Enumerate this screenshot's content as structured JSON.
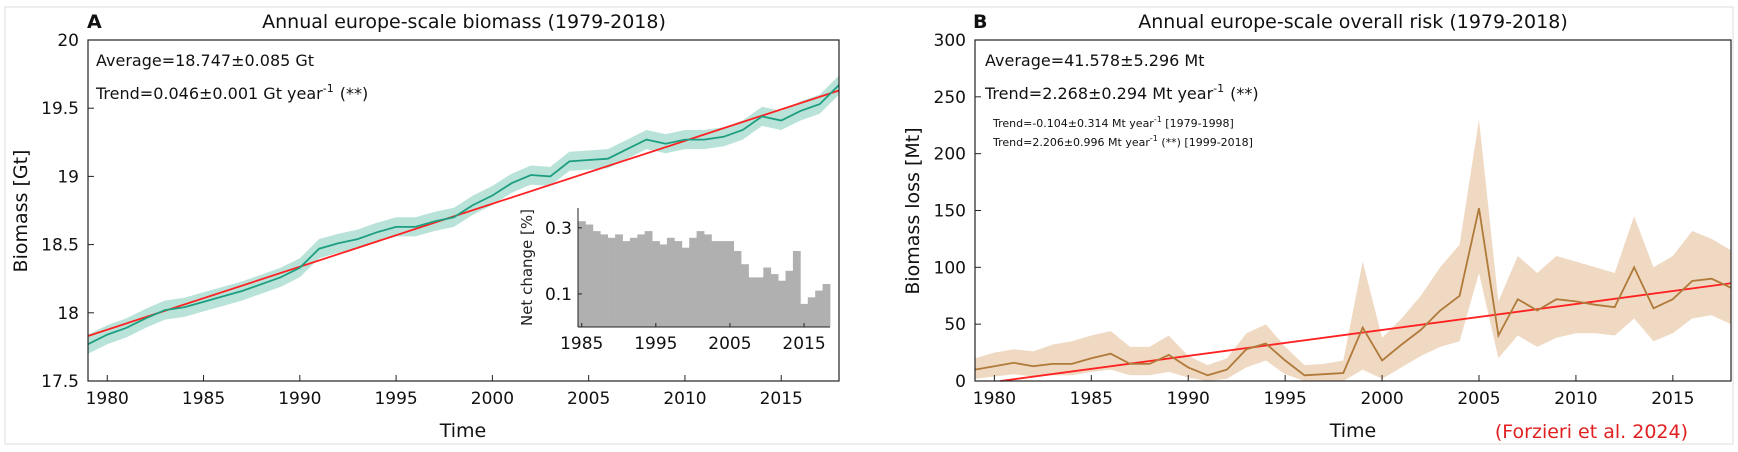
{
  "credit": "(Forzieri et al. 2024)",
  "colors": {
    "biomass_line": "#1e9e80",
    "biomass_band": "#b9e3d9",
    "risk_line": "#b07a3a",
    "risk_band": "#efd9c2",
    "trend_line": "#ff2222",
    "inset_bars": "#b0b0b0",
    "credit_text": "#e02020"
  },
  "chart_data": [
    {
      "type": "line",
      "panel_letter": "A",
      "title": "Annual europe-scale biomass (1979-2018)",
      "xlabel": "Time",
      "ylabel": "Biomass [Gt]",
      "xlim": [
        1979,
        2018
      ],
      "ylim": [
        17.5,
        20
      ],
      "xticks": [
        1980,
        1985,
        1990,
        1995,
        2000,
        2005,
        2010,
        2015
      ],
      "yticks": [
        17.5,
        18,
        18.5,
        19,
        19.5,
        20
      ],
      "annotations": {
        "average": "Average=18.747±0.085 Gt",
        "trend": "Trend=0.046±0.001 Gt year",
        "trend_exp": "-1",
        "trend_sig": "(**)"
      },
      "x": [
        1979,
        1980,
        1981,
        1982,
        1983,
        1984,
        1985,
        1986,
        1987,
        1988,
        1989,
        1990,
        1991,
        1992,
        1993,
        1994,
        1995,
        1996,
        1997,
        1998,
        1999,
        2000,
        2001,
        2002,
        2003,
        2004,
        2005,
        2006,
        2007,
        2008,
        2009,
        2010,
        2011,
        2012,
        2013,
        2014,
        2015,
        2016,
        2017,
        2018
      ],
      "series": [
        {
          "values": [
            17.77,
            17.84,
            17.89,
            17.96,
            18.02,
            18.04,
            18.08,
            18.12,
            18.16,
            18.21,
            18.26,
            18.33,
            18.47,
            18.51,
            18.54,
            18.59,
            18.63,
            18.63,
            18.67,
            18.7,
            18.79,
            18.86,
            18.95,
            19.01,
            19.0,
            19.11,
            19.12,
            19.13,
            19.2,
            19.27,
            19.24,
            19.27,
            19.27,
            19.29,
            19.34,
            19.44,
            19.41,
            19.48,
            19.53,
            19.67
          ],
          "band_halfwidth": 0.07
        }
      ],
      "trend_line": {
        "x": [
          1979,
          2018
        ],
        "y": [
          17.83,
          19.63
        ]
      },
      "inset": {
        "type": "bar",
        "ylabel": "Net change [%]",
        "xlim": [
          1984.5,
          2018.5
        ],
        "ylim": [
          0,
          0.36
        ],
        "xticks": [
          1985,
          1995,
          2005,
          2015
        ],
        "yticks": [
          0.1,
          0.3
        ],
        "x": [
          1985,
          1986,
          1987,
          1988,
          1989,
          1990,
          1991,
          1992,
          1993,
          1994,
          1995,
          1996,
          1997,
          1998,
          1999,
          2000,
          2001,
          2002,
          2003,
          2004,
          2005,
          2006,
          2007,
          2008,
          2009,
          2010,
          2011,
          2012,
          2013,
          2014,
          2015,
          2016,
          2017,
          2018
        ],
        "values": [
          0.32,
          0.31,
          0.29,
          0.28,
          0.27,
          0.28,
          0.26,
          0.27,
          0.28,
          0.29,
          0.26,
          0.25,
          0.27,
          0.26,
          0.24,
          0.27,
          0.29,
          0.28,
          0.26,
          0.26,
          0.26,
          0.23,
          0.19,
          0.15,
          0.15,
          0.18,
          0.16,
          0.14,
          0.17,
          0.23,
          0.07,
          0.09,
          0.11,
          0.13
        ]
      }
    },
    {
      "type": "line",
      "panel_letter": "B",
      "title": "Annual europe-scale overall risk (1979-2018)",
      "xlabel": "Time",
      "ylabel": "Biomass loss [Mt]",
      "xlim": [
        1979,
        2018
      ],
      "ylim": [
        0,
        300
      ],
      "xticks": [
        1980,
        1985,
        1990,
        1995,
        2000,
        2005,
        2010,
        2015
      ],
      "yticks": [
        0,
        50,
        100,
        150,
        200,
        250,
        300
      ],
      "annotations": {
        "average": "Average=41.578±5.296 Mt",
        "trend": "Trend=2.268±0.294 Mt year",
        "trend_exp": "-1",
        "trend_sig": "(**)",
        "sub1": "Trend=-0.104±0.314 Mt year",
        "sub1_exp": "-1",
        "sub1_tail": " [1979-1998]",
        "sub2": "Trend=2.206±0.996 Mt year",
        "sub2_exp": "-1",
        "sub2_tail": " (**) [1999-2018]"
      },
      "x": [
        1979,
        1980,
        1981,
        1982,
        1983,
        1984,
        1985,
        1986,
        1987,
        1988,
        1989,
        1990,
        1991,
        1992,
        1993,
        1994,
        1995,
        1996,
        1997,
        1998,
        1999,
        2000,
        2001,
        2002,
        2003,
        2004,
        2005,
        2006,
        2007,
        2008,
        2009,
        2010,
        2011,
        2012,
        2013,
        2014,
        2015,
        2016,
        2017,
        2018
      ],
      "series": [
        {
          "values": [
            10,
            13,
            16,
            13,
            15,
            15,
            20,
            24,
            15,
            15,
            23,
            12,
            5,
            10,
            28,
            33,
            18,
            5,
            6,
            7,
            47,
            18,
            32,
            45,
            62,
            75,
            152,
            40,
            72,
            62,
            72,
            70,
            67,
            65,
            100,
            64,
            72,
            88,
            90,
            82
          ],
          "band_lower": [
            2,
            4,
            6,
            4,
            5,
            5,
            8,
            10,
            5,
            5,
            8,
            3,
            0,
            2,
            12,
            18,
            6,
            0,
            0,
            0,
            10,
            2,
            12,
            22,
            30,
            35,
            95,
            20,
            40,
            30,
            38,
            42,
            42,
            40,
            55,
            35,
            42,
            55,
            58,
            50
          ],
          "band_upper": [
            20,
            25,
            28,
            26,
            32,
            35,
            40,
            44,
            30,
            30,
            40,
            22,
            14,
            20,
            42,
            50,
            30,
            14,
            15,
            18,
            105,
            38,
            55,
            75,
            100,
            120,
            230,
            70,
            110,
            95,
            110,
            105,
            100,
            95,
            145,
            100,
            110,
            132,
            125,
            115
          ]
        }
      ],
      "trend_line": {
        "x": [
          1979,
          2018
        ],
        "y": [
          -3,
          86
        ]
      }
    }
  ]
}
